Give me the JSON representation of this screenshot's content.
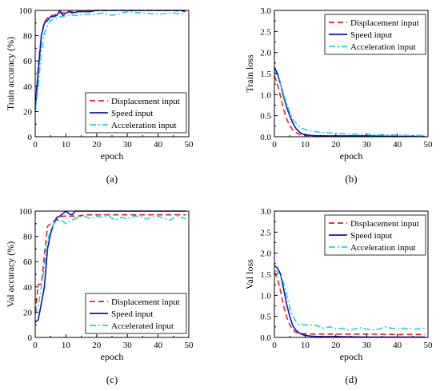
{
  "colors": {
    "displacement": "#e02020",
    "speed": "#1010c8",
    "acceleration": "#18d8d8"
  },
  "chart_data": [
    {
      "id": "a",
      "type": "line",
      "caption": "(a)",
      "xlabel": "epoch",
      "ylabel": "Train accuracy (%)",
      "xlim": [
        0,
        50
      ],
      "ylim": [
        0,
        100
      ],
      "xticks": [
        "0",
        "10",
        "20",
        "30",
        "40",
        "50"
      ],
      "yticks": [
        "0",
        "20",
        "40",
        "60",
        "80",
        "100"
      ],
      "legend_position": "bottom-right",
      "series": [
        {
          "name": "Displacement input",
          "style": "dashed",
          "colorKey": "displacement",
          "x": [
            0,
            1,
            2,
            3,
            4,
            5,
            6,
            7,
            8,
            9,
            10,
            12,
            14,
            16,
            18,
            20,
            25,
            30,
            35,
            40,
            45,
            49
          ],
          "y": [
            22,
            55,
            80,
            91,
            94,
            96,
            96,
            97,
            98,
            98,
            99,
            99,
            99,
            99,
            100,
            100,
            100,
            100,
            100,
            100,
            100,
            99
          ]
        },
        {
          "name": "Speed input",
          "style": "solid",
          "colorKey": "speed",
          "x": [
            0,
            1,
            2,
            3,
            4,
            5,
            6,
            7,
            8,
            9,
            10,
            11,
            12,
            14,
            16,
            18,
            20,
            25,
            30,
            35,
            40,
            45,
            49
          ],
          "y": [
            22,
            52,
            80,
            90,
            92,
            95,
            95,
            96,
            100,
            96,
            98,
            99,
            98,
            99,
            99,
            99,
            100,
            100,
            100,
            100,
            100,
            100,
            100
          ]
        },
        {
          "name": "Acceleration input",
          "style": "dashdot",
          "colorKey": "acceleration",
          "x": [
            0,
            1,
            2,
            3,
            4,
            5,
            6,
            7,
            8,
            9,
            10,
            12,
            14,
            16,
            18,
            20,
            22,
            25,
            28,
            30,
            35,
            40,
            45,
            49
          ],
          "y": [
            20,
            40,
            68,
            82,
            88,
            92,
            93,
            94,
            95,
            95,
            96,
            96,
            96,
            97,
            97,
            97,
            98,
            96,
            98,
            99,
            98,
            97,
            98,
            97
          ]
        }
      ]
    },
    {
      "id": "b",
      "type": "line",
      "caption": "(b)",
      "xlabel": "epoch",
      "ylabel": "Train loss",
      "xlim": [
        0,
        50
      ],
      "ylim": [
        0,
        3.0
      ],
      "xticks": [
        "0",
        "10",
        "20",
        "30",
        "40",
        "50"
      ],
      "yticks": [
        "0.0",
        "0.5",
        "1.0",
        "1.5",
        "2.0",
        "2.5",
        "3.0"
      ],
      "legend_position": "top-right",
      "series": [
        {
          "name": "Displacement input",
          "style": "dashed",
          "colorKey": "displacement",
          "x": [
            0,
            1,
            2,
            3,
            4,
            5,
            6,
            7,
            8,
            9,
            10,
            12,
            15,
            20,
            30,
            40,
            49
          ],
          "y": [
            1.45,
            1.25,
            0.95,
            0.65,
            0.42,
            0.27,
            0.16,
            0.1,
            0.06,
            0.04,
            0.03,
            0.02,
            0.02,
            0.01,
            0.01,
            0.01,
            0.01
          ]
        },
        {
          "name": "Speed input",
          "style": "solid",
          "colorKey": "speed",
          "x": [
            0,
            1,
            2,
            3,
            4,
            5,
            6,
            7,
            8,
            9,
            10,
            12,
            15,
            20,
            30,
            40,
            49
          ],
          "y": [
            1.65,
            1.5,
            1.25,
            0.95,
            0.7,
            0.5,
            0.32,
            0.2,
            0.12,
            0.07,
            0.05,
            0.03,
            0.02,
            0.02,
            0.02,
            0.01,
            0.01
          ]
        },
        {
          "name": "Acceleration input",
          "style": "dashdot",
          "colorKey": "acceleration",
          "x": [
            0,
            1,
            2,
            3,
            4,
            5,
            6,
            7,
            8,
            9,
            10,
            12,
            15,
            20,
            25,
            30,
            35,
            40,
            45,
            49
          ],
          "y": [
            1.55,
            1.45,
            1.25,
            1.0,
            0.78,
            0.58,
            0.42,
            0.32,
            0.25,
            0.2,
            0.17,
            0.14,
            0.1,
            0.08,
            0.06,
            0.06,
            0.05,
            0.04,
            0.03,
            0.03
          ]
        }
      ]
    },
    {
      "id": "c",
      "type": "line",
      "caption": "(c)",
      "xlabel": "epoch",
      "ylabel": "Val accuracy (%)",
      "xlim": [
        0,
        50
      ],
      "ylim": [
        0,
        100
      ],
      "xticks": [
        "0",
        "10",
        "20",
        "30",
        "40",
        "50"
      ],
      "yticks": [
        "0",
        "20",
        "40",
        "60",
        "80",
        "100"
      ],
      "legend_position": "bottom-right",
      "series": [
        {
          "name": "Displacement input",
          "style": "dashed",
          "colorKey": "displacement",
          "x": [
            0,
            1,
            2,
            3,
            4,
            5,
            6,
            7,
            8,
            9,
            10,
            12,
            14,
            16,
            18,
            20,
            25,
            30,
            35,
            40,
            45,
            49
          ],
          "y": [
            20,
            42,
            42,
            65,
            88,
            90,
            92,
            93,
            95,
            96,
            96,
            96,
            96,
            97,
            97,
            97,
            97,
            97,
            97,
            97,
            97,
            97
          ]
        },
        {
          "name": "Speed input",
          "style": "solid",
          "colorKey": "speed",
          "x": [
            0,
            1,
            2,
            3,
            4,
            5,
            6,
            7,
            8,
            9,
            10,
            11,
            12,
            13,
            14,
            16,
            18,
            20,
            25,
            30,
            35,
            40,
            45,
            49
          ],
          "y": [
            12,
            14,
            27,
            40,
            70,
            82,
            90,
            95,
            96,
            98,
            100,
            98,
            97,
            100,
            100,
            100,
            100,
            100,
            100,
            100,
            100,
            100,
            100,
            100
          ]
        },
        {
          "name": "Accelerated input",
          "style": "dashdot",
          "colorKey": "acceleration",
          "x": [
            0,
            1,
            2,
            3,
            4,
            5,
            6,
            7,
            8,
            9,
            10,
            12,
            14,
            16,
            18,
            20,
            22,
            24,
            26,
            28,
            30,
            32,
            34,
            36,
            38,
            40,
            42,
            44,
            46,
            49
          ],
          "y": [
            18,
            25,
            40,
            56,
            76,
            85,
            90,
            92,
            93,
            92,
            90,
            93,
            95,
            96,
            94,
            96,
            95,
            96,
            93,
            95,
            94,
            96,
            96,
            94,
            95,
            96,
            94,
            93,
            96,
            94
          ]
        }
      ]
    },
    {
      "id": "d",
      "type": "line",
      "caption": "(d)",
      "xlabel": "epoch",
      "ylabel": "Val loss",
      "xlim": [
        0,
        50
      ],
      "ylim": [
        0,
        3.0
      ],
      "xticks": [
        "0",
        "10",
        "20",
        "30",
        "40",
        "50"
      ],
      "yticks": [
        "0.0",
        "0.5",
        "1.0",
        "1.5",
        "2.0",
        "2.5",
        "3.0"
      ],
      "legend_position": "top-right",
      "series": [
        {
          "name": "Displacement input",
          "style": "dashed",
          "colorKey": "displacement",
          "x": [
            0,
            1,
            2,
            3,
            4,
            5,
            6,
            7,
            8,
            9,
            10,
            12,
            15,
            20,
            30,
            40,
            49
          ],
          "y": [
            1.55,
            1.4,
            1.1,
            0.75,
            0.48,
            0.3,
            0.18,
            0.12,
            0.1,
            0.09,
            0.09,
            0.08,
            0.08,
            0.08,
            0.08,
            0.07,
            0.07
          ]
        },
        {
          "name": "Speed input",
          "style": "solid",
          "colorKey": "speed",
          "x": [
            0,
            1,
            2,
            3,
            4,
            5,
            6,
            7,
            8,
            9,
            10,
            12,
            15,
            20,
            30,
            40,
            49
          ],
          "y": [
            1.7,
            1.65,
            1.5,
            1.15,
            0.78,
            0.5,
            0.28,
            0.17,
            0.11,
            0.07,
            0.05,
            0.03,
            0.02,
            0.02,
            0.01,
            0.01,
            0.01
          ]
        },
        {
          "name": "Acceleration input",
          "style": "dashdot",
          "colorKey": "acceleration",
          "x": [
            0,
            1,
            2,
            3,
            4,
            5,
            6,
            7,
            8,
            9,
            10,
            11,
            12,
            14,
            16,
            18,
            20,
            22,
            24,
            26,
            28,
            30,
            32,
            34,
            36,
            38,
            40,
            42,
            44,
            46,
            49
          ],
          "y": [
            1.6,
            1.55,
            1.45,
            1.3,
            1.0,
            0.72,
            0.5,
            0.38,
            0.3,
            0.3,
            0.3,
            0.28,
            0.3,
            0.28,
            0.22,
            0.25,
            0.2,
            0.22,
            0.18,
            0.2,
            0.23,
            0.2,
            0.18,
            0.2,
            0.25,
            0.22,
            0.2,
            0.22,
            0.2,
            0.2,
            0.22
          ]
        }
      ]
    }
  ]
}
